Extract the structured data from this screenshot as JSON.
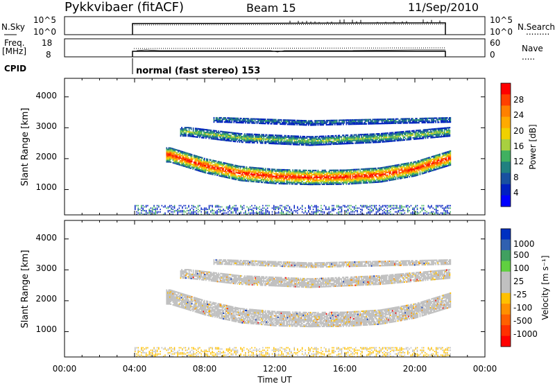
{
  "header": {
    "title": "Pykkvibaer (fitACF)",
    "beam": "Beam 15",
    "date": "11/Sep/2010"
  },
  "noise_panel": {
    "left_label": "N.Sky",
    "left_ticks": [
      "10^5",
      "10^0"
    ],
    "right_ticks": [
      "10^5",
      "10^0"
    ],
    "right_label": "N.Search"
  },
  "freq_panel": {
    "left_label_line1": "Freq.",
    "left_label_line2": "[MHz]",
    "left_ticks": [
      "18",
      "8"
    ],
    "right_ticks": [
      "60",
      "0"
    ],
    "right_label": "Nave"
  },
  "cpid": {
    "label": "CPID",
    "value": "normal (fast stereo) 153"
  },
  "power_panel": {
    "ylabel": "Slant Range [km]",
    "yticks": [
      "4000",
      "3000",
      "2000",
      "1000"
    ],
    "colorbar_label": "Power [dB]",
    "colorbar_ticks": [
      "28",
      "24",
      "20",
      "16",
      "12",
      "8",
      "4"
    ],
    "colorbar_colors": [
      "#ff0000",
      "#ff4000",
      "#ff8000",
      "#ffaa00",
      "#f0d000",
      "#a8d040",
      "#40b060",
      "#208080",
      "#1850a0",
      "#0020c0",
      "#0000ff"
    ]
  },
  "velocity_panel": {
    "ylabel": "Slant Range [km]",
    "yticks": [
      "4000",
      "3000",
      "2000",
      "1000"
    ],
    "colorbar_label": "Velocity [m s⁻¹]",
    "colorbar_ticks": [
      "1000",
      "500",
      "100",
      "25",
      "-25",
      "-100",
      "-500",
      "-1000"
    ],
    "colorbar_colors": [
      "#0030c0",
      "#3060b0",
      "#40a060",
      "#60d040",
      "#c0c0c0",
      "#c0c0c0",
      "#ffc000",
      "#ff9000",
      "#ff6000",
      "#ff3000",
      "#ff0000"
    ]
  },
  "xaxis": {
    "label": "Time UT",
    "ticks": [
      "00:00",
      "04:00",
      "08:00",
      "12:00",
      "16:00",
      "20:00",
      "00:00"
    ]
  },
  "chart_data": {
    "type": "heatmap",
    "title": "Pykkvibaer (fitACF)",
    "xlabel": "Time UT",
    "ylabel": "Slant Range [km]",
    "xlim_hours": [
      0,
      24
    ],
    "ylim_km": [
      180,
      4600
    ],
    "data_start_hour": 4,
    "data_end_hour": 22,
    "echo_bands": [
      {
        "name": "main",
        "range_km": [
          [
            6,
            2150
          ],
          [
            8,
            1800
          ],
          [
            10,
            1550
          ],
          [
            12,
            1450
          ],
          [
            14,
            1420
          ],
          [
            16,
            1430
          ],
          [
            18,
            1500
          ],
          [
            20,
            1700
          ],
          [
            22,
            2050
          ]
        ],
        "peak_power_db": 28
      },
      {
        "name": "upper",
        "range_km": [
          [
            7,
            2900
          ],
          [
            10,
            2700
          ],
          [
            14,
            2600
          ],
          [
            18,
            2700
          ],
          [
            22,
            2900
          ]
        ],
        "peak_power_db": 14
      },
      {
        "name": "top",
        "range_km": [
          [
            9,
            3300
          ],
          [
            14,
            3200
          ],
          [
            18,
            3250
          ],
          [
            22,
            3300
          ]
        ],
        "peak_power_db": 8
      }
    ],
    "power_colorbar_db": [
      4,
      8,
      12,
      16,
      20,
      24,
      28
    ],
    "velocity_colorbar_ms": [
      -1000,
      -500,
      -100,
      -25,
      25,
      100,
      500,
      1000
    ]
  }
}
